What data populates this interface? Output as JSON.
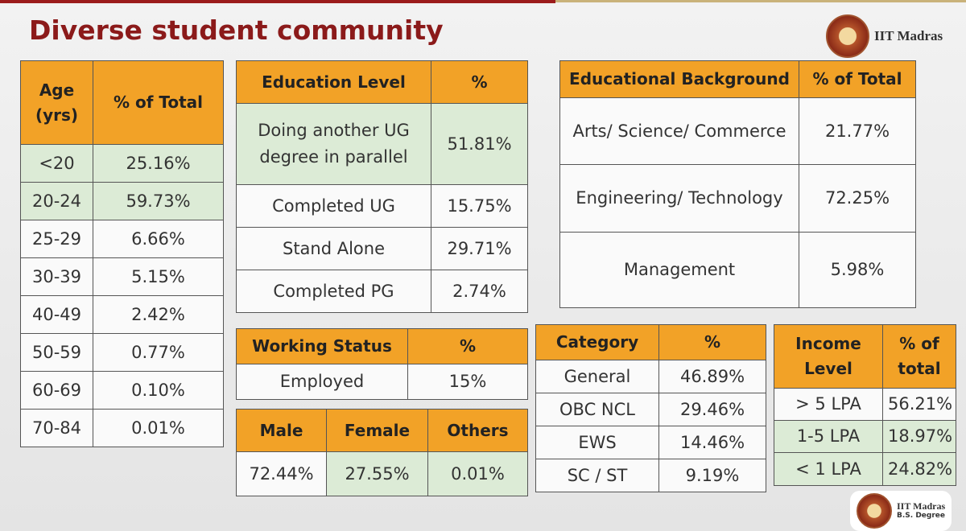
{
  "title": "Diverse student community",
  "logo": {
    "text": "IIT Madras"
  },
  "footer_logo": {
    "line1": "IIT Madras",
    "line2": "B.S. Degree"
  },
  "tables": {
    "age": {
      "header": [
        "Age (yrs)",
        "% of Total"
      ],
      "rows": [
        [
          "<20",
          "25.16%"
        ],
        [
          "20-24",
          "59.73%"
        ],
        [
          "25-29",
          "6.66%"
        ],
        [
          "30-39",
          "5.15%"
        ],
        [
          "40-49",
          "2.42%"
        ],
        [
          "50-59",
          "0.77%"
        ],
        [
          "60-69",
          "0.10%"
        ],
        [
          "70-84",
          "0.01%"
        ]
      ]
    },
    "education_level": {
      "header": [
        "Education Level",
        "%"
      ],
      "rows": [
        [
          "Doing another UG degree in parallel",
          "51.81%"
        ],
        [
          "Completed UG",
          "15.75%"
        ],
        [
          "Stand Alone",
          "29.71%"
        ],
        [
          "Completed PG",
          "2.74%"
        ]
      ]
    },
    "educational_background": {
      "header": [
        "Educational Background",
        "% of Total"
      ],
      "rows": [
        [
          "Arts/ Science/ Commerce",
          "21.77%"
        ],
        [
          "Engineering/ Technology",
          "72.25%"
        ],
        [
          "Management",
          "5.98%"
        ]
      ]
    },
    "working_status": {
      "header": [
        "Working Status",
        "%"
      ],
      "rows": [
        [
          "Employed",
          "15%"
        ]
      ]
    },
    "gender": {
      "header": [
        "Male",
        "Female",
        "Others"
      ],
      "rows": [
        [
          "72.44%",
          "27.55%",
          "0.01%"
        ]
      ]
    },
    "category": {
      "header": [
        "Category",
        "%"
      ],
      "rows": [
        [
          "General",
          "46.89%"
        ],
        [
          "OBC NCL",
          "29.46%"
        ],
        [
          "EWS",
          "14.46%"
        ],
        [
          "SC / ST",
          "9.19%"
        ]
      ]
    },
    "income": {
      "header": [
        "Income Level",
        "% of total"
      ],
      "rows": [
        [
          "> 5 LPA",
          "56.21%"
        ],
        [
          "1-5 LPA",
          "18.97%"
        ],
        [
          "< 1 LPA",
          "24.82%"
        ]
      ]
    }
  }
}
